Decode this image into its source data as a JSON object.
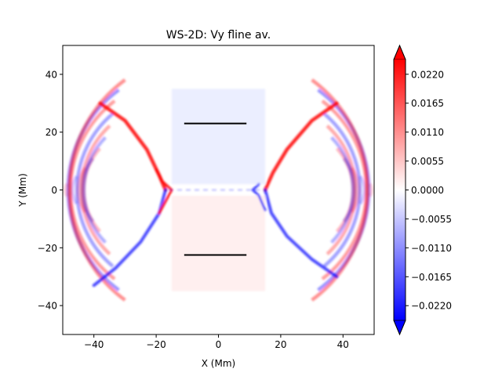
{
  "chart_data": {
    "type": "heatmap",
    "title": "WS-2D: Vy fline av.",
    "xlabel": "X (Mm)",
    "ylabel": "Y (Mm)",
    "xlim": [
      -50,
      50
    ],
    "ylim": [
      -50,
      50
    ],
    "x_ticks": [
      {
        "value": -40,
        "label": "−40"
      },
      {
        "value": -20,
        "label": "−20"
      },
      {
        "value": 0,
        "label": "0"
      },
      {
        "value": 20,
        "label": "20"
      },
      {
        "value": 40,
        "label": "40"
      }
    ],
    "y_ticks": [
      {
        "value": 40,
        "label": "40"
      },
      {
        "value": 20,
        "label": "20"
      },
      {
        "value": 0,
        "label": "0"
      },
      {
        "value": -20,
        "label": "−20"
      },
      {
        "value": -40,
        "label": "−40"
      }
    ],
    "colormap": "bwr",
    "color_range": [
      -0.0248,
      0.0248
    ],
    "colorbar_ticks": [
      {
        "value": 0.022,
        "label": "0.0220"
      },
      {
        "value": 0.0165,
        "label": "0.0165"
      },
      {
        "value": 0.011,
        "label": "0.0110"
      },
      {
        "value": 0.0055,
        "label": "0.0055"
      },
      {
        "value": 0.0,
        "label": "0.0000"
      },
      {
        "value": -0.0055,
        "label": "−0.0055"
      },
      {
        "value": -0.011,
        "label": "−0.0110"
      },
      {
        "value": -0.0165,
        "label": "−0.0165"
      },
      {
        "value": -0.022,
        "label": "−0.0220"
      }
    ],
    "overlay_segments": [
      {
        "x": [
          -11,
          9
        ],
        "y": [
          23,
          23
        ]
      },
      {
        "x": [
          -11,
          9
        ],
        "y": [
          -22.5,
          -22.5
        ]
      }
    ]
  },
  "colors": {
    "positive": "#ff0000",
    "negative": "#0000ff",
    "zero": "#ffffff",
    "axes": "#000000"
  }
}
